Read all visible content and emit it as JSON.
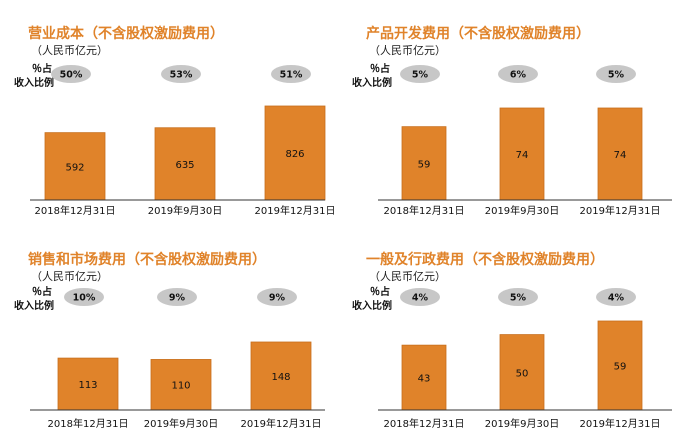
{
  "chart_data": [
    {
      "type": "bar",
      "title": "营业成本（不含股权激励费用）",
      "unit": "（人民币亿元）",
      "ratio_label": [
        "％占",
        "收入比例"
      ],
      "categories": [
        "2018年12月31日",
        "2019年9月30日",
        "2019年12月31日"
      ],
      "values": [
        592,
        635,
        826
      ],
      "value_labels": [
        "592",
        "635",
        "826"
      ],
      "ratios": [
        "50%",
        "53%",
        "51%"
      ]
    },
    {
      "type": "bar",
      "title": "产品开发费用（不含股权激励费用）",
      "unit": "（人民币亿元）",
      "ratio_label": [
        "％占",
        "收入比例"
      ],
      "categories": [
        "2018年12月31日",
        "2019年9月30日",
        "2019年12月31日"
      ],
      "values": [
        59,
        74,
        74
      ],
      "value_labels": [
        "59",
        "74",
        "74"
      ],
      "ratios": [
        "5%",
        "6%",
        "5%"
      ]
    },
    {
      "type": "bar",
      "title": "销售和市场费用（不含股权激励费用）",
      "unit": "（人民币亿元）",
      "ratio_label": [
        "％占",
        "收入比例"
      ],
      "categories": [
        "2018年12月31日",
        "2019年9月30日",
        "2019年12月31日"
      ],
      "values": [
        113,
        110,
        148
      ],
      "value_labels": [
        "113",
        "110",
        "148"
      ],
      "ratios": [
        "10%",
        "9%",
        "9%"
      ]
    },
    {
      "type": "bar",
      "title": "一般及行政费用（不含股权激励费用）",
      "unit": "（人民币亿元）",
      "ratio_label": [
        "％占",
        "收入比例"
      ],
      "categories": [
        "2018年12月31日",
        "2019年9月30日",
        "2019年12月31日"
      ],
      "values": [
        43,
        50,
        59
      ],
      "value_labels": [
        "43",
        "50",
        "59"
      ],
      "ratios": [
        "4%",
        "5%",
        "4%"
      ]
    }
  ],
  "colors": {
    "title": "#e0832a",
    "bar": "#e0832a",
    "bar_edge": "#c86f1c",
    "pill": "#c7c7c7",
    "axis": "#333333"
  }
}
